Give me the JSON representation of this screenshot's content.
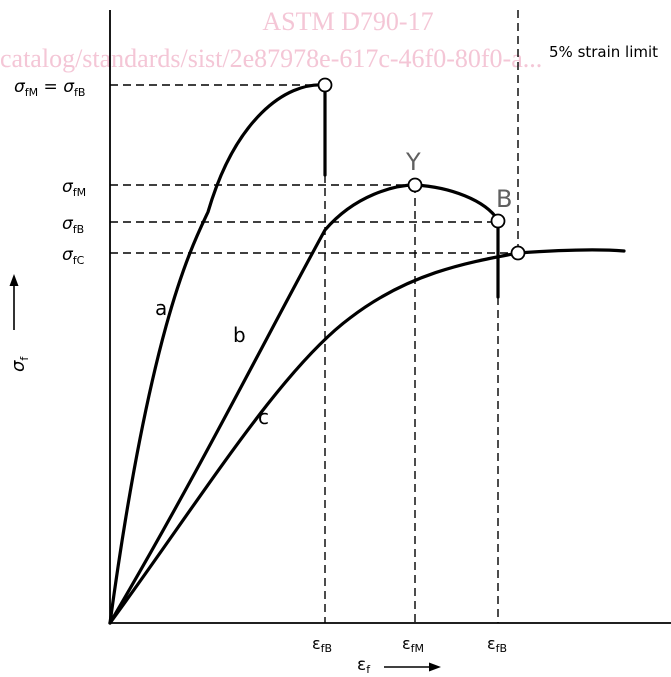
{
  "watermark": {
    "line1": "ASTM D790-17",
    "line2": "catalog/standards/sist/2e87978e-617c-46f0-80f0-a..."
  },
  "labels": {
    "strain_limit": "5% strain limit",
    "sigma": "σ",
    "epsilon": "ε",
    "sub_f": "f",
    "sub_fM": "fM",
    "sub_fB": "fB",
    "sub_fC": "fC",
    "equals": " = ",
    "point_Y": "Y",
    "point_B": "B",
    "curve_a": "a",
    "curve_b": "b",
    "curve_c": "c"
  },
  "colors": {
    "watermark": "#f4c6d6",
    "ink": "#000000",
    "point_label": "#606060"
  }
}
